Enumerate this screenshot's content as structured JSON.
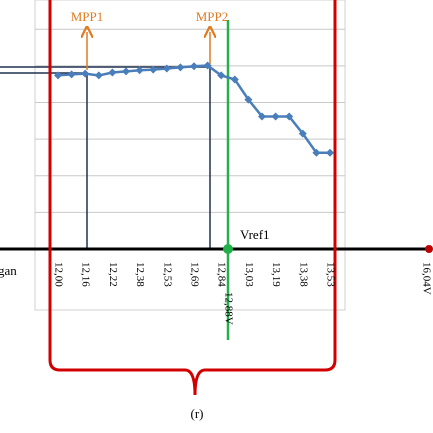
{
  "chart_data": {
    "type": "line",
    "categories": [
      "12,00",
      null,
      "12,16",
      null,
      "12,22",
      null,
      "12,38",
      null,
      "12,53",
      null,
      "12,69",
      null,
      "12,84",
      null,
      "13,03",
      null,
      "13,19",
      null,
      "13,38",
      null,
      "13,53"
    ],
    "series": [
      {
        "name": null,
        "color": "#4a7ebb",
        "values": [
          4.74,
          4.77,
          4.79,
          4.74,
          4.82,
          4.85,
          4.88,
          4.9,
          4.93,
          4.96,
          4.99,
          5.01,
          4.74,
          4.63,
          4.08,
          3.62,
          3.62,
          3.62,
          3.15,
          2.63,
          2.63
        ]
      }
    ],
    "ylim": [
      0,
      6.8
    ],
    "yticks": [
      1,
      2,
      3,
      4,
      5,
      6
    ],
    "grid": true,
    "annotations": {
      "mpp1": "MPP1",
      "mpp2": "MPP2",
      "vref": "Vref1",
      "left_label": "gan",
      "vref_value": "12,88V",
      "right_label": "16,04V",
      "caption": "(r)"
    }
  }
}
